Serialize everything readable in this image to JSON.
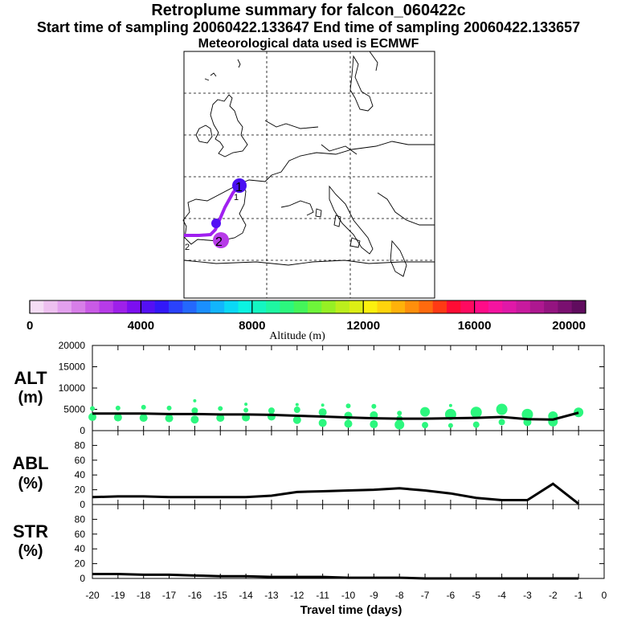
{
  "header": {
    "title": "Retroplume summary for falcon_060422c",
    "sampling_line": "Start time of sampling 20060422.133647      End time of sampling 20060422.133657",
    "met_line": "Meteorological data used is ECMWF"
  },
  "colorbar": {
    "label": "Altitude (m)",
    "tick_labels": [
      "0",
      "4000",
      "8000",
      "12000",
      "16000",
      "20000"
    ],
    "colors": [
      "#f5ddf5",
      "#eec0f0",
      "#e3a0ee",
      "#d77ee8",
      "#c95ae6",
      "#b73be8",
      "#9e20ea",
      "#7c0ff0",
      "#5410f4",
      "#3218f8",
      "#2a42fb",
      "#2468fd",
      "#1a8ffe",
      "#12b5fd",
      "#0ad8f6",
      "#0bf3e2",
      "#14f6c2",
      "#1ef7a2",
      "#2cf77e",
      "#44f55a",
      "#6ef53a",
      "#96f024",
      "#bcee1c",
      "#ddee14",
      "#fbf00e",
      "#ffd40c",
      "#ffb20a",
      "#ff8f0c",
      "#ff6a0e",
      "#ff3a14",
      "#ff0c34",
      "#ff0a60",
      "#ff0c88",
      "#f514a0",
      "#e018a8",
      "#c81a9e",
      "#ae1890",
      "#941480",
      "#7a1070",
      "#600c5e"
    ]
  },
  "map": {
    "label_1": "1",
    "label_2": "2",
    "track_color": "#a020f0"
  },
  "panels": {
    "alt_label": [
      "ALT",
      "(m)"
    ],
    "abl_label": [
      "ABL",
      "(%)"
    ],
    "str_label": [
      "STR",
      "(%)"
    ],
    "xlabel": "Travel time (days)"
  },
  "chart_data": {
    "type": "line",
    "x_ticks": [
      -20,
      -19,
      -18,
      -17,
      -16,
      -15,
      -14,
      -13,
      -12,
      -11,
      -10,
      -9,
      -8,
      -7,
      -6,
      -5,
      -4,
      -3,
      -2,
      -1,
      0
    ],
    "x_tick_labels": [
      "-20",
      "-19",
      "-18",
      "-17",
      "-16",
      "-15",
      "-14",
      "-13",
      "-12",
      "-11",
      "-10",
      "-9",
      "-8",
      "-7",
      "-6",
      "-5",
      "-4",
      "-3",
      "-2",
      "-1",
      "0"
    ],
    "xlim": [
      -20,
      0
    ],
    "alt": {
      "ylim": [
        0,
        20000
      ],
      "y_ticks": [
        0,
        5000,
        10000,
        15000,
        20000
      ],
      "y_tick_labels": [
        "0",
        "5000",
        "10000",
        "15000",
        "20000"
      ],
      "line_x": [
        -20,
        -19,
        -18,
        -17,
        -16,
        -15,
        -14,
        -13,
        -12,
        -11,
        -10,
        -9,
        -8,
        -7,
        -6,
        -5,
        -4,
        -3,
        -2,
        -1
      ],
      "line_y": [
        4000,
        4000,
        4000,
        3900,
        3900,
        3800,
        3800,
        3700,
        3500,
        3300,
        3100,
        2900,
        2800,
        2800,
        2900,
        3000,
        3200,
        2700,
        2600,
        4200
      ],
      "cluster_color": "#2cf77e",
      "clusters": [
        {
          "x": -20,
          "alt": 3200,
          "r": 5
        },
        {
          "x": -20,
          "alt": 5200,
          "r": 3
        },
        {
          "x": -19,
          "alt": 3100,
          "r": 5
        },
        {
          "x": -19,
          "alt": 5300,
          "r": 3
        },
        {
          "x": -18,
          "alt": 3000,
          "r": 5
        },
        {
          "x": -18,
          "alt": 5500,
          "r": 3
        },
        {
          "x": -17,
          "alt": 2900,
          "r": 5
        },
        {
          "x": -17,
          "alt": 5300,
          "r": 3
        },
        {
          "x": -16,
          "alt": 2600,
          "r": 5
        },
        {
          "x": -16,
          "alt": 4700,
          "r": 4
        },
        {
          "x": -16,
          "alt": 7000,
          "r": 2
        },
        {
          "x": -15,
          "alt": 3000,
          "r": 5
        },
        {
          "x": -15,
          "alt": 5200,
          "r": 3
        },
        {
          "x": -14,
          "alt": 3100,
          "r": 5
        },
        {
          "x": -14,
          "alt": 4800,
          "r": 3
        },
        {
          "x": -14,
          "alt": 6200,
          "r": 2
        },
        {
          "x": -13,
          "alt": 3300,
          "r": 5
        },
        {
          "x": -13,
          "alt": 4700,
          "r": 4
        },
        {
          "x": -12,
          "alt": 2500,
          "r": 5
        },
        {
          "x": -12,
          "alt": 4900,
          "r": 4
        },
        {
          "x": -12,
          "alt": 6100,
          "r": 2
        },
        {
          "x": -11,
          "alt": 1800,
          "r": 5
        },
        {
          "x": -11,
          "alt": 4300,
          "r": 5
        },
        {
          "x": -11,
          "alt": 6000,
          "r": 2
        },
        {
          "x": -10,
          "alt": 1600,
          "r": 5
        },
        {
          "x": -10,
          "alt": 3500,
          "r": 5
        },
        {
          "x": -10,
          "alt": 5800,
          "r": 3
        },
        {
          "x": -9,
          "alt": 1500,
          "r": 5
        },
        {
          "x": -9,
          "alt": 3600,
          "r": 5
        },
        {
          "x": -9,
          "alt": 5700,
          "r": 3
        },
        {
          "x": -8,
          "alt": 1400,
          "r": 6
        },
        {
          "x": -8,
          "alt": 2800,
          "r": 4
        },
        {
          "x": -8,
          "alt": 4100,
          "r": 3
        },
        {
          "x": -7,
          "alt": 1300,
          "r": 4
        },
        {
          "x": -7,
          "alt": 4400,
          "r": 6
        },
        {
          "x": -6,
          "alt": 1200,
          "r": 3
        },
        {
          "x": -6,
          "alt": 3800,
          "r": 7
        },
        {
          "x": -6,
          "alt": 5900,
          "r": 2
        },
        {
          "x": -5,
          "alt": 1400,
          "r": 4
        },
        {
          "x": -5,
          "alt": 4300,
          "r": 7
        },
        {
          "x": -4,
          "alt": 2000,
          "r": 4
        },
        {
          "x": -4,
          "alt": 5000,
          "r": 7
        },
        {
          "x": -3,
          "alt": 2000,
          "r": 5
        },
        {
          "x": -3,
          "alt": 3800,
          "r": 7
        },
        {
          "x": -2,
          "alt": 2100,
          "r": 6
        },
        {
          "x": -2,
          "alt": 3400,
          "r": 6
        },
        {
          "x": -1,
          "alt": 4300,
          "r": 6
        }
      ]
    },
    "abl": {
      "ylim": [
        0,
        100
      ],
      "y_ticks": [
        0,
        20,
        40,
        60,
        80
      ],
      "y_tick_labels": [
        "0",
        "20",
        "40",
        "60",
        "80"
      ],
      "x": [
        -20,
        -19,
        -18,
        -17,
        -16,
        -15,
        -14,
        -13,
        -12,
        -11,
        -10,
        -9,
        -8,
        -7,
        -6,
        -5,
        -4,
        -3,
        -2,
        -1
      ],
      "y": [
        10,
        11,
        11,
        10,
        10,
        10,
        10,
        12,
        17,
        18,
        19,
        20,
        22,
        19,
        15,
        9,
        6,
        6,
        28,
        1
      ]
    },
    "str": {
      "ylim": [
        0,
        100
      ],
      "y_ticks": [
        0,
        20,
        40,
        60,
        80
      ],
      "y_tick_labels": [
        "0",
        "20",
        "40",
        "60",
        "80"
      ],
      "x": [
        -20,
        -19,
        -18,
        -17,
        -16,
        -15,
        -14,
        -13,
        -12,
        -11,
        -10,
        -9,
        -8,
        -7,
        -6,
        -5,
        -4,
        -3,
        -2,
        -1
      ],
      "y": [
        6,
        6,
        5,
        5,
        4,
        3,
        3,
        2,
        2,
        2,
        1,
        1,
        1,
        0,
        0,
        0,
        0,
        0,
        0,
        0
      ]
    }
  }
}
